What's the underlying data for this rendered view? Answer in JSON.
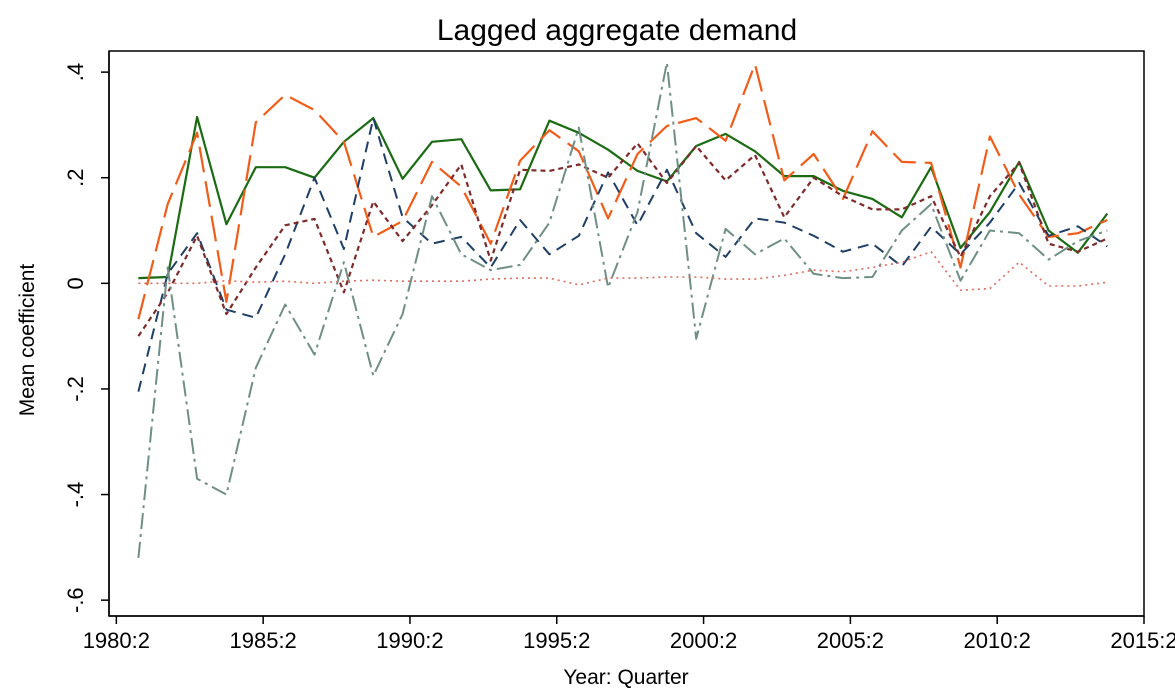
{
  "chart_data": {
    "type": "line",
    "title": "Lagged aggregate demand",
    "xlabel": "Year: Quarter",
    "ylabel": "Mean coefficient",
    "xlim": [
      1980.0,
      2015.25
    ],
    "ylim": [
      -0.63,
      0.44
    ],
    "x_ticks": [
      {
        "value": 1980.25,
        "label": "1980:2"
      },
      {
        "value": 1985.25,
        "label": "1985:2"
      },
      {
        "value": 1990.25,
        "label": "1990:2"
      },
      {
        "value": 1995.25,
        "label": "1995:2"
      },
      {
        "value": 2000.25,
        "label": "2000:2"
      },
      {
        "value": 2005.25,
        "label": "2005:2"
      },
      {
        "value": 2010.25,
        "label": "2010:2"
      },
      {
        "value": 2015.25,
        "label": "2015:2"
      }
    ],
    "y_ticks": [
      {
        "value": -0.6,
        "label": "-.6"
      },
      {
        "value": -0.4,
        "label": "-.4"
      },
      {
        "value": -0.2,
        "label": "-.2"
      },
      {
        "value": 0,
        "label": "0"
      },
      {
        "value": 0.2,
        "label": ".2"
      },
      {
        "value": 0.4,
        "label": ".4"
      }
    ],
    "grid": false,
    "legend": "none",
    "x": [
      1981,
      1982,
      1983,
      1984,
      1985,
      1986,
      1987,
      1988,
      1989,
      1990,
      1991,
      1992,
      1993,
      1994,
      1995,
      1996,
      1997,
      1998,
      1999,
      2000,
      2001,
      2002,
      2003,
      2004,
      2005,
      2006,
      2007,
      2008,
      2009,
      2010,
      2011,
      2012,
      2013,
      2014
    ],
    "series": [
      {
        "color": "#1a6b12",
        "dash": "",
        "width": 2.2,
        "values": [
          0.01,
          0.012,
          0.315,
          0.112,
          0.22,
          0.22,
          0.2,
          0.268,
          0.313,
          0.198,
          0.268,
          0.273,
          0.176,
          0.178,
          0.308,
          0.285,
          0.253,
          0.213,
          0.193,
          0.26,
          0.283,
          0.25,
          0.203,
          0.203,
          0.175,
          0.16,
          0.125,
          0.22,
          0.067,
          0.135,
          0.23,
          0.1,
          0.058,
          0.132
        ]
      },
      {
        "color": "#f25c19",
        "dash": "26,9",
        "width": 2.2,
        "values": [
          -0.068,
          0.15,
          0.285,
          -0.035,
          0.305,
          0.357,
          0.328,
          0.268,
          0.088,
          0.118,
          0.23,
          0.183,
          0.075,
          0.232,
          0.29,
          0.25,
          0.123,
          0.245,
          0.298,
          0.313,
          0.27,
          0.415,
          0.195,
          0.245,
          0.16,
          0.288,
          0.23,
          0.228,
          0.03,
          0.278,
          0.168,
          0.088,
          0.095,
          0.12
        ]
      },
      {
        "color": "#1f3f66",
        "dash": "11,7",
        "width": 2.0,
        "values": [
          -0.205,
          0.018,
          0.095,
          -0.05,
          -0.065,
          0.055,
          0.2,
          0.065,
          0.313,
          0.125,
          0.075,
          0.088,
          0.03,
          0.12,
          0.055,
          0.09,
          0.21,
          0.11,
          0.215,
          0.095,
          0.05,
          0.123,
          0.115,
          0.09,
          0.06,
          0.075,
          0.032,
          0.107,
          0.055,
          0.115,
          0.19,
          0.09,
          0.108,
          0.07
        ]
      },
      {
        "color": "#7f2a2a",
        "dash": "5,4",
        "width": 2.2,
        "values": [
          -0.1,
          -0.018,
          0.09,
          -0.058,
          0.03,
          0.11,
          0.122,
          -0.017,
          0.155,
          0.08,
          0.148,
          0.225,
          0.043,
          0.215,
          0.213,
          0.225,
          0.2,
          0.265,
          0.19,
          0.26,
          0.195,
          0.243,
          0.125,
          0.2,
          0.165,
          0.14,
          0.14,
          0.165,
          0.05,
          0.165,
          0.228,
          0.075,
          0.06,
          0.085
        ]
      },
      {
        "color": "#6f8f84",
        "dash": "16,5,3,5",
        "width": 2.0,
        "values": [
          -0.52,
          0.03,
          -0.37,
          -0.4,
          -0.16,
          -0.04,
          -0.135,
          0.04,
          -0.175,
          -0.058,
          0.165,
          0.055,
          0.025,
          0.035,
          0.115,
          0.295,
          -0.008,
          0.135,
          0.418,
          -0.105,
          0.103,
          0.055,
          0.085,
          0.018,
          0.01,
          0.012,
          0.1,
          0.15,
          0.005,
          0.1,
          0.095,
          0.045,
          0.08,
          0.1
        ]
      },
      {
        "color": "#e06a5c",
        "dash": "2,4",
        "width": 1.6,
        "values": [
          0.0,
          0.0,
          0.0,
          0.005,
          0.002,
          0.004,
          0.0,
          0.004,
          0.006,
          0.004,
          0.004,
          0.004,
          0.008,
          0.01,
          0.01,
          -0.003,
          0.01,
          0.01,
          0.012,
          0.012,
          0.008,
          0.008,
          0.015,
          0.025,
          0.022,
          0.03,
          0.04,
          0.06,
          -0.013,
          -0.01,
          0.04,
          -0.005,
          -0.005,
          0.002
        ]
      }
    ]
  }
}
